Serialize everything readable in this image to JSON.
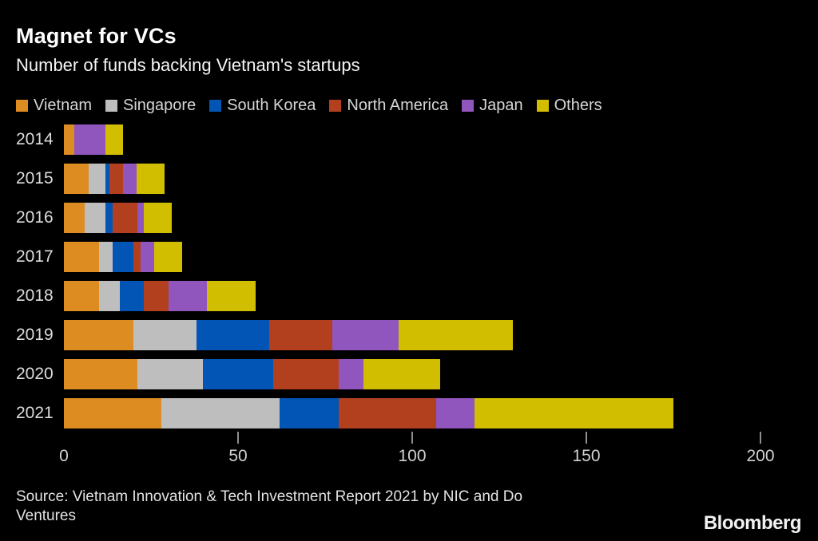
{
  "header": {
    "title": "Magnet for VCs",
    "subtitle": "Number of funds backing Vietnam's startups"
  },
  "chart_data": {
    "type": "bar",
    "orientation": "horizontal",
    "stacked": true,
    "title": "Magnet for VCs",
    "subtitle": "Number of funds backing Vietnam's startups",
    "categories": [
      "2014",
      "2015",
      "2016",
      "2017",
      "2018",
      "2019",
      "2020",
      "2021"
    ],
    "series": [
      {
        "name": "Vietnam",
        "color": "#DD8C22",
        "values": [
          3,
          7,
          6,
          10,
          10,
          20,
          21,
          28
        ]
      },
      {
        "name": "Singapore",
        "color": "#BEBEBE",
        "values": [
          0,
          5,
          6,
          4,
          6,
          18,
          19,
          34
        ]
      },
      {
        "name": "South Korea",
        "color": "#0254B5",
        "values": [
          0,
          1,
          2,
          6,
          7,
          21,
          20,
          17
        ]
      },
      {
        "name": "North America",
        "color": "#B2401F",
        "values": [
          0,
          4,
          7,
          2,
          7,
          18,
          19,
          28
        ]
      },
      {
        "name": "Japan",
        "color": "#9155BE",
        "values": [
          9,
          4,
          2,
          4,
          11,
          19,
          7,
          11
        ]
      },
      {
        "name": "Others",
        "color": "#D2BE00",
        "values": [
          5,
          8,
          8,
          8,
          14,
          33,
          22,
          57
        ]
      }
    ],
    "totals_by_year": [
      17,
      29,
      31,
      34,
      55,
      129,
      108,
      175
    ],
    "xlabel": "",
    "ylabel": "",
    "xlim": [
      0,
      200
    ],
    "xticks": [
      0,
      50,
      100,
      150,
      200
    ],
    "grid": false,
    "legend_position": "top",
    "background_color": "#000000",
    "text_color": "#d6d6d6"
  },
  "footer": {
    "source_line1": "Source: Vietnam Innovation & Tech Investment Report 2021 by NIC and Do",
    "source_line2": "Ventures",
    "brand": "Bloomberg"
  }
}
